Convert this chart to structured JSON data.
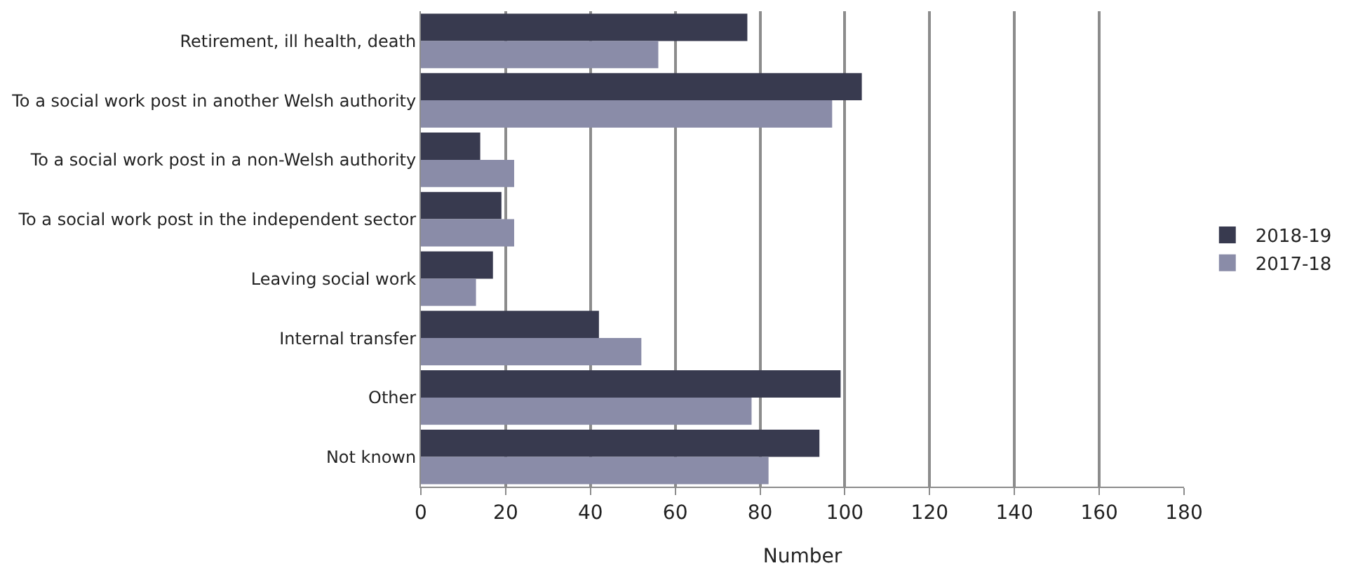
{
  "chart_data": {
    "type": "bar",
    "orientation": "horizontal",
    "xlabel": "Number",
    "categories": [
      "Retirement, ill health, death",
      "To a social work post in another Welsh authority",
      "To a social work post in a non-Welsh authority",
      "To a social work post in the independent sector",
      "Leaving social work",
      "Internal transfer",
      "Other",
      "Not known"
    ],
    "series": [
      {
        "name": "2018-19",
        "color": "#383a4f",
        "values": [
          77,
          104,
          14,
          19,
          17,
          42,
          99,
          94
        ]
      },
      {
        "name": "2017-18",
        "color": "#8a8ca8",
        "values": [
          56,
          97,
          22,
          22,
          13,
          52,
          78,
          82
        ]
      }
    ],
    "xlim": [
      0,
      180
    ],
    "xticks": [
      0,
      20,
      40,
      60,
      80,
      100,
      120,
      140,
      160,
      180
    ],
    "grid": "x",
    "legend": "right"
  }
}
